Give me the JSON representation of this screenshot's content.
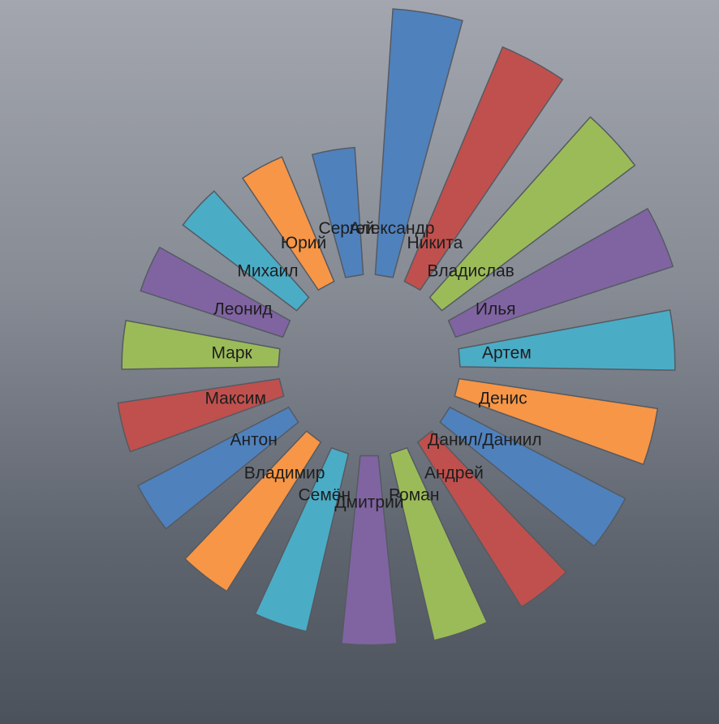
{
  "chart_data": {
    "type": "pie",
    "title": "",
    "legend": "none",
    "categories": [
      "Александр",
      "Никита",
      "Владислав",
      "Илья",
      "Артем",
      "Денис",
      "Данил/Даниил",
      "Андрей",
      "Роман",
      "Дмитрий",
      "Семён",
      "Владимир",
      "Антон",
      "Максим",
      "Марк",
      "Леонид",
      "Михаил",
      "Юрий",
      "Сергей"
    ],
    "values": [
      375,
      350,
      325,
      300,
      275,
      250,
      245,
      240,
      235,
      230,
      220,
      210,
      200,
      190,
      180,
      170,
      160,
      150,
      140
    ],
    "colors": [
      "#4f81bd",
      "#c0504d",
      "#9bbb59",
      "#8064a2",
      "#4bacc6",
      "#f79646",
      "#4f81bd",
      "#c0504d",
      "#9bbb59",
      "#8064a2",
      "#4bacc6",
      "#f79646",
      "#4f81bd",
      "#c0504d",
      "#9bbb59",
      "#8064a2",
      "#4bacc6",
      "#f79646",
      "#4f81bd"
    ],
    "start_angle": 0,
    "direction": "clockwise"
  }
}
